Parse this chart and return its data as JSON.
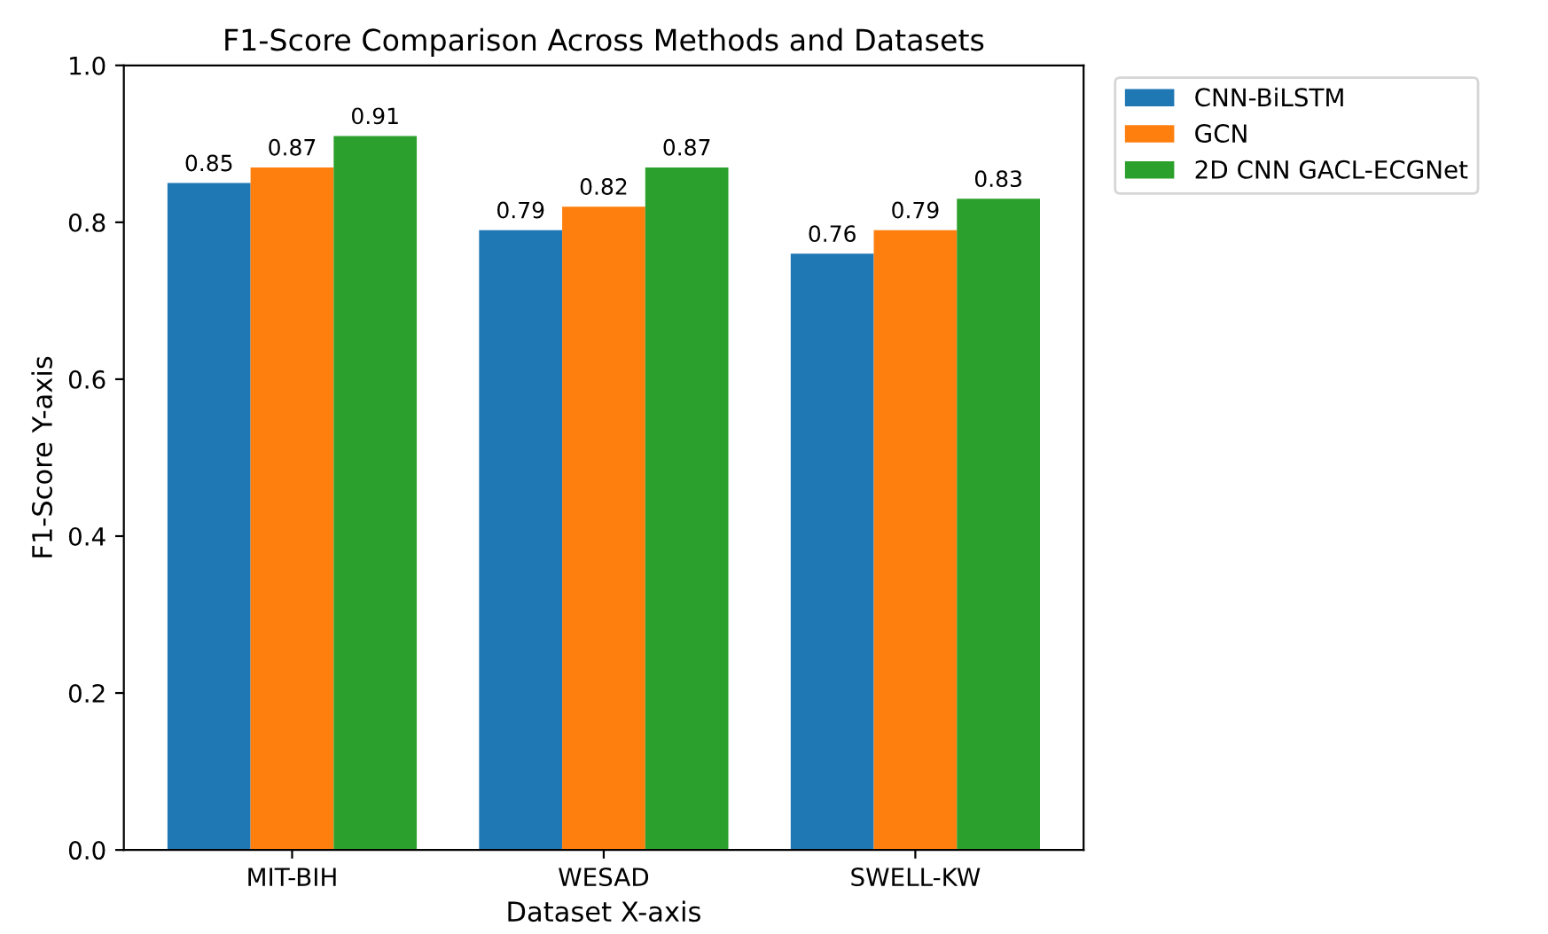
{
  "chart_data": {
    "type": "bar",
    "title": "F1-Score Comparison Across Methods and Datasets",
    "xlabel": "Dataset X-axis",
    "ylabel": "F1-Score Y-axis",
    "categories": [
      "MIT-BIH",
      "WESAD",
      "SWELL-KW"
    ],
    "series": [
      {
        "name": "CNN-BiLSTM",
        "color": "#1f77b4",
        "values": [
          0.85,
          0.79,
          0.76
        ]
      },
      {
        "name": "GCN",
        "color": "#ff7f0e",
        "values": [
          0.87,
          0.82,
          0.79
        ]
      },
      {
        "name": "2D CNN GACL-ECGNet",
        "color": "#2ca02c",
        "values": [
          0.91,
          0.87,
          0.83
        ]
      }
    ],
    "ylim": [
      0,
      1.0
    ],
    "yticks": [
      {
        "value": 0,
        "label": "0.0"
      },
      0.2,
      0.4,
      0.6,
      0.8,
      {
        "value": 1,
        "label": "1.0"
      }
    ],
    "data_labels": true,
    "legend": "top right",
    "grid": false
  }
}
